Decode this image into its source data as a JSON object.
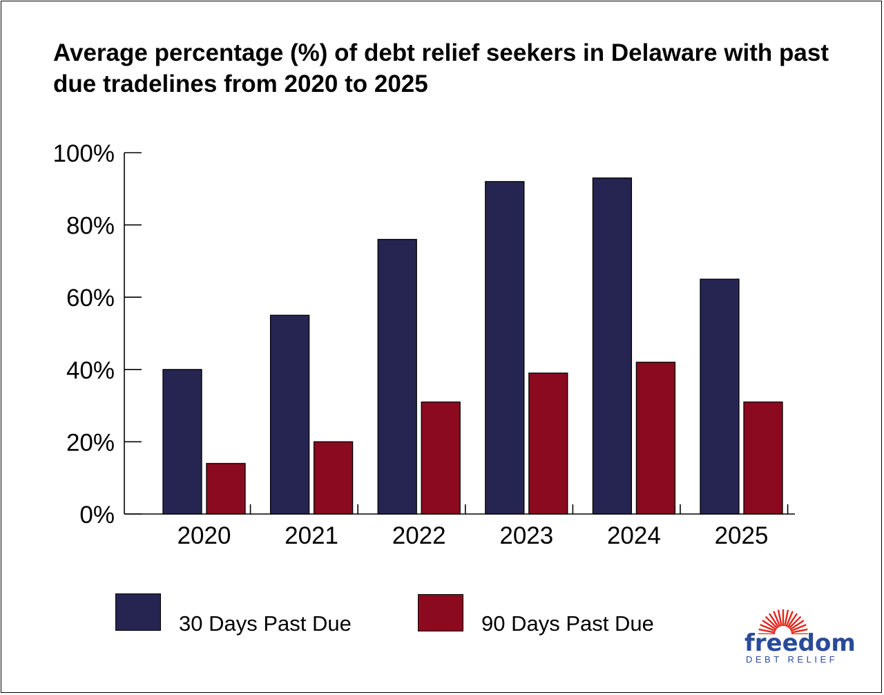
{
  "title": "Average percentage (%) of debt relief seekers in Delaware with past due tradelines from 2020 to 2025",
  "chart_data": {
    "type": "bar",
    "title": "Average percentage (%) of debt relief seekers in Delaware with past due tradelines from 2020 to 2025",
    "categories": [
      "2020",
      "2021",
      "2022",
      "2023",
      "2024",
      "2025"
    ],
    "series": [
      {
        "name": "30 Days Past Due",
        "color": "#262551",
        "values": [
          40,
          55,
          76,
          92,
          93,
          65
        ]
      },
      {
        "name": "90 Days Past Due",
        "color": "#8b0a1f",
        "values": [
          14,
          20,
          31,
          39,
          42,
          31
        ]
      }
    ],
    "ylim": [
      0,
      100
    ],
    "yticks": [
      0,
      20,
      40,
      60,
      80,
      100
    ],
    "ytick_labels": [
      "0%",
      "20%",
      "40%",
      "60%",
      "80%",
      "100%"
    ],
    "xlabel": "",
    "ylabel": "",
    "grid": false,
    "legend_position": "bottom"
  },
  "legend": {
    "items": [
      {
        "label": "30 Days Past Due",
        "color": "#262551"
      },
      {
        "label": "90 Days Past Due",
        "color": "#8b0a1f"
      }
    ]
  },
  "logo": {
    "word": "freedom",
    "subtitle": "DEBT RELIEF",
    "color": "#2a4a9a",
    "accent": "#e2231a"
  }
}
